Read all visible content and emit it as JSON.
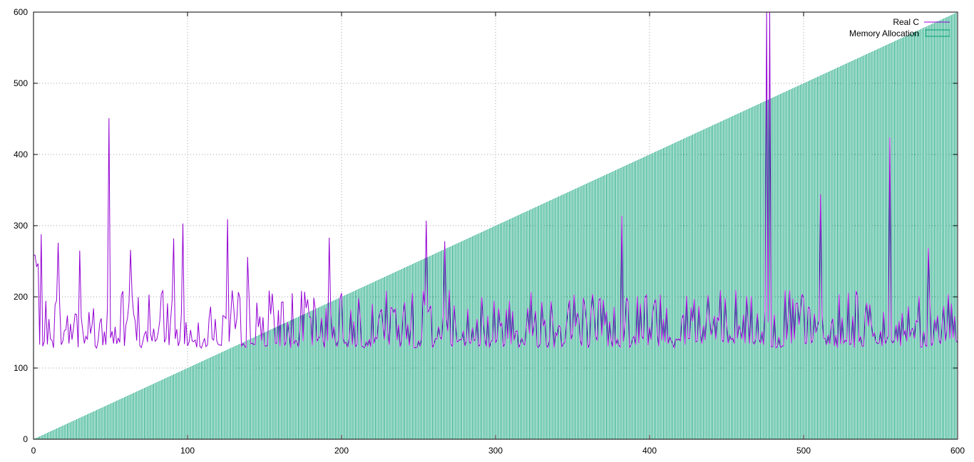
{
  "chart_data": {
    "type": "bar",
    "title": "",
    "xlabel": "",
    "ylabel": "",
    "xlim": [
      0,
      600
    ],
    "ylim": [
      0,
      600
    ],
    "x_ticks": [
      0,
      100,
      200,
      300,
      400,
      500,
      600
    ],
    "y_ticks": [
      0,
      100,
      200,
      300,
      400,
      500,
      600
    ],
    "grid": true,
    "legend_position": "top-right",
    "series": [
      {
        "name": "Real C",
        "type": "line",
        "color": "#9400d3",
        "description_of_values": "noisy line mostly between 130 and 210, with spikes",
        "baseline_range": [
          128,
          210
        ],
        "spikes": [
          {
            "x": 5,
            "y": 288
          },
          {
            "x": 16,
            "y": 276
          },
          {
            "x": 30,
            "y": 265
          },
          {
            "x": 49,
            "y": 451
          },
          {
            "x": 63,
            "y": 266
          },
          {
            "x": 91,
            "y": 282
          },
          {
            "x": 97,
            "y": 303
          },
          {
            "x": 126,
            "y": 309
          },
          {
            "x": 139,
            "y": 256
          },
          {
            "x": 192,
            "y": 283
          },
          {
            "x": 255,
            "y": 307
          },
          {
            "x": 267,
            "y": 278
          },
          {
            "x": 382,
            "y": 314
          },
          {
            "x": 476,
            "y": 600
          },
          {
            "x": 478,
            "y": 600
          },
          {
            "x": 511,
            "y": 344
          },
          {
            "x": 556,
            "y": 424
          },
          {
            "x": 581,
            "y": 269
          }
        ]
      },
      {
        "name": "Memory Allocation",
        "type": "impulses",
        "color": "#009e73",
        "description_of_values": "one vertical bar per x from 0 to 600 with height equal to x",
        "x_start": 0,
        "x_end": 600,
        "step": 1,
        "slope": 1
      }
    ]
  },
  "legend": {
    "items": [
      {
        "label": "Real C",
        "color": "#9400d3"
      },
      {
        "label": "Memory Allocation",
        "color": "#009e73"
      }
    ]
  }
}
